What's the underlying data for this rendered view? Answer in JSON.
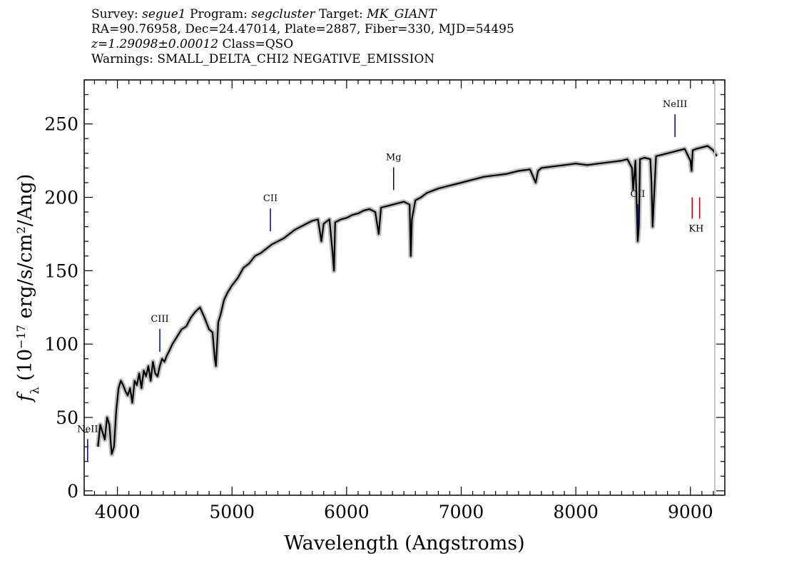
{
  "header": {
    "survey_label": "Survey:",
    "survey": "segue1",
    "program_label": "Program:",
    "program": "segcluster",
    "target_label": "Target:",
    "target": "MK_GIANT",
    "line2": "RA=90.76958, Dec=24.47014, Plate=2887, Fiber=330, MJD=54495",
    "redshift": "z=1.29098±0.00012",
    "class": "Class=QSO",
    "warnings": "Warnings: SMALL_DELTA_CHI2 NEGATIVE_EMISSION"
  },
  "chart_data": {
    "type": "line",
    "xlabel": "Wavelength (Angstroms)",
    "ylabel": "f_λ (10^-17 erg/s/cm^2/Ang)",
    "xlim": [
      3710,
      9300
    ],
    "ylim": [
      -3,
      280
    ],
    "x_ticks": [
      4000,
      5000,
      6000,
      7000,
      8000,
      9000
    ],
    "x_tick_labels": [
      "4000",
      "5000",
      "6000",
      "7000",
      "8000",
      "9000"
    ],
    "y_ticks": [
      0,
      50,
      100,
      150,
      200,
      250
    ],
    "y_tick_labels": [
      "0",
      "50",
      "100",
      "150",
      "200",
      "250"
    ],
    "series": [
      {
        "color": "#000000",
        "error_color": "#bfbfbf",
        "x": [
          3830,
          3850,
          3870,
          3890,
          3910,
          3930,
          3950,
          3970,
          3990,
          4010,
          4030,
          4050,
          4070,
          4090,
          4110,
          4130,
          4150,
          4170,
          4190,
          4210,
          4230,
          4250,
          4270,
          4290,
          4310,
          4330,
          4350,
          4370,
          4390,
          4410,
          4430,
          4450,
          4480,
          4520,
          4560,
          4600,
          4640,
          4680,
          4720,
          4760,
          4800,
          4830,
          4850,
          4860,
          4870,
          4880,
          4900,
          4930,
          4960,
          5000,
          5050,
          5100,
          5150,
          5200,
          5250,
          5300,
          5350,
          5400,
          5450,
          5500,
          5550,
          5600,
          5650,
          5700,
          5750,
          5780,
          5800,
          5850,
          5880,
          5890,
          5900,
          5950,
          6000,
          6050,
          6100,
          6150,
          6200,
          6250,
          6280,
          6300,
          6350,
          6400,
          6450,
          6500,
          6550,
          6560,
          6570,
          6600,
          6650,
          6700,
          6800,
          6900,
          7000,
          7100,
          7200,
          7300,
          7400,
          7500,
          7600,
          7650,
          7670,
          7700,
          7800,
          7900,
          8000,
          8100,
          8200,
          8300,
          8400,
          8450,
          8490,
          8500,
          8520,
          8540,
          8550,
          8560,
          8600,
          8650,
          8660,
          8670,
          8700,
          8750,
          8800,
          8850,
          8900,
          8950,
          9000,
          9010,
          9020,
          9050,
          9100,
          9150,
          9200,
          9230
        ],
        "values": [
          30,
          45,
          40,
          35,
          50,
          45,
          25,
          30,
          55,
          70,
          75,
          72,
          68,
          65,
          70,
          60,
          75,
          72,
          80,
          70,
          82,
          78,
          85,
          75,
          88,
          80,
          78,
          85,
          90,
          88,
          92,
          95,
          100,
          105,
          110,
          112,
          118,
          122,
          125,
          118,
          110,
          108,
          90,
          85,
          100,
          115,
          120,
          130,
          135,
          140,
          145,
          152,
          155,
          160,
          162,
          165,
          168,
          170,
          172,
          175,
          178,
          180,
          182,
          184,
          185,
          170,
          182,
          185,
          160,
          150,
          183,
          185,
          186,
          188,
          189,
          191,
          192,
          190,
          175,
          193,
          194,
          195,
          196,
          197,
          195,
          160,
          185,
          198,
          200,
          203,
          206,
          208,
          210,
          212,
          214,
          215,
          216,
          218,
          219,
          210,
          218,
          220,
          221,
          222,
          223,
          222,
          223,
          224,
          225,
          226,
          220,
          205,
          225,
          170,
          180,
          226,
          227,
          226,
          210,
          180,
          228,
          229,
          230,
          231,
          232,
          233,
          225,
          218,
          232,
          233,
          234,
          235,
          232,
          228
        ]
      }
    ],
    "line_markers": [
      {
        "label": "NeII",
        "x": 3740,
        "color": "#00008b"
      },
      {
        "label": "CIII",
        "x": 4370,
        "color": "#00008b"
      },
      {
        "label": "CII",
        "x": 5335,
        "color": "#00008b"
      },
      {
        "label": "Mg",
        "x": 6410,
        "color": "#00008b"
      },
      {
        "label": "OII",
        "x": 8540,
        "color": "#00008b"
      },
      {
        "label": "NeIII",
        "x": 8865,
        "color": "#00008b"
      },
      {
        "label": "K",
        "x": 9015,
        "color": "#cc0000"
      },
      {
        "label": "H",
        "x": 9080,
        "color": "#cc0000"
      }
    ]
  }
}
